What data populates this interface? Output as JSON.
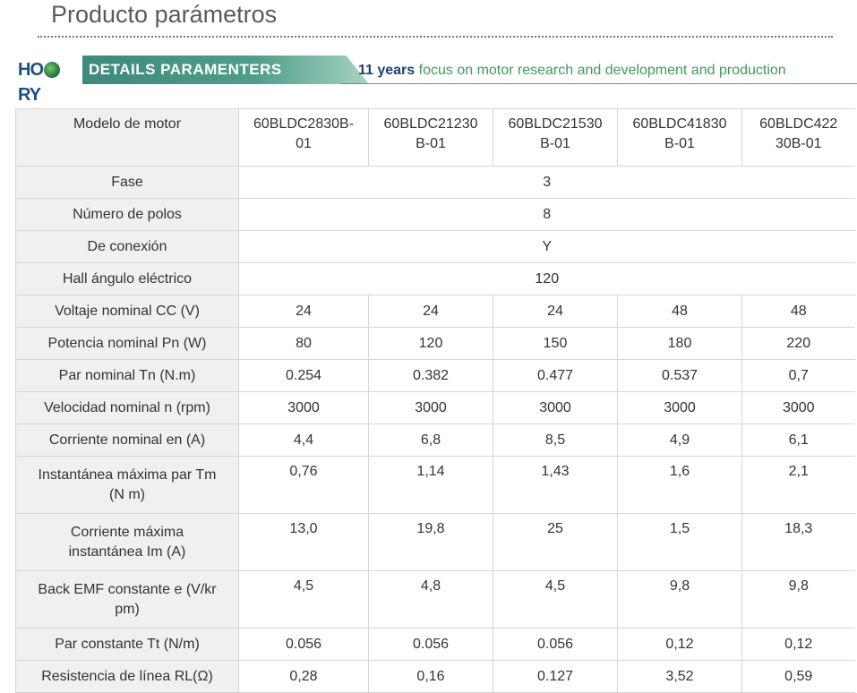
{
  "header": {
    "title": "Producto parámetros"
  },
  "banner": {
    "logo_text": "HOLRY",
    "tag": "DETAILS PARAMENTERS",
    "slogan_years": "11 years",
    "slogan_rest": " focus on motor research and development and production"
  },
  "table": {
    "header_label": "Modelo de motor",
    "models": [
      "60BLDC2830B-01",
      "60BLDC21230B-01",
      "60BLDC21530B-01",
      "60BLDC41830B-01",
      "60BLDC42230B-01"
    ],
    "model_lines": [
      [
        "60BLDC2830B-",
        "01"
      ],
      [
        "60BLDC21230",
        "B-01"
      ],
      [
        "60BLDC21530",
        "B-01"
      ],
      [
        "60BLDC41830",
        "B-01"
      ],
      [
        "60BLDC422",
        "30B-01"
      ]
    ],
    "shared_rows": [
      {
        "label": "Fase",
        "value": "3"
      },
      {
        "label": "Número de polos",
        "value": "8"
      },
      {
        "label": "De conexión",
        "value": "Y"
      },
      {
        "label": "Hall ángulo eléctrico",
        "value": "120"
      }
    ],
    "rows": [
      {
        "label": "Voltaje nominal CC (V)",
        "values": [
          "24",
          "24",
          "24",
          "48",
          "48"
        ]
      },
      {
        "label": "Potencia nominal Pn (W)",
        "values": [
          "80",
          "120",
          "150",
          "180",
          "220"
        ]
      },
      {
        "label": "Par nominal Tn (N.m)",
        "values": [
          "0.254",
          "0.382",
          "0.477",
          "0.537",
          "0,7"
        ]
      },
      {
        "label": "Velocidad nominal n (rpm)",
        "values": [
          "3000",
          "3000",
          "3000",
          "3000",
          "3000"
        ]
      },
      {
        "label": "Corriente nominal en (A)",
        "values": [
          "4,4",
          "6,8",
          "8,5",
          "4,9",
          "6,1"
        ]
      },
      {
        "label_lines": [
          "Instantánea máxima par Tm",
          "(N m)"
        ],
        "values": [
          "0,76",
          "1,14",
          "1,43",
          "1,6",
          "2,1"
        ]
      },
      {
        "label_lines": [
          "Corriente máxima",
          "instantánea Im (A)"
        ],
        "values": [
          "13,0",
          "19,8",
          "25",
          "1,5",
          "18,3"
        ]
      },
      {
        "label_lines": [
          "Back EMF constante e (V/kr",
          "pm)"
        ],
        "values": [
          "4,5",
          "4,8",
          "4,5",
          "9,8",
          "9,8"
        ]
      },
      {
        "label": "Par constante Tt (N/m)",
        "values": [
          "0.056",
          "0.056",
          "0.056",
          "0,12",
          "0,12"
        ]
      },
      {
        "label": "Resistencia de línea RL(Ω)",
        "values": [
          "0,28",
          "0,16",
          "0.127",
          "3,52",
          "0,59"
        ]
      }
    ]
  }
}
